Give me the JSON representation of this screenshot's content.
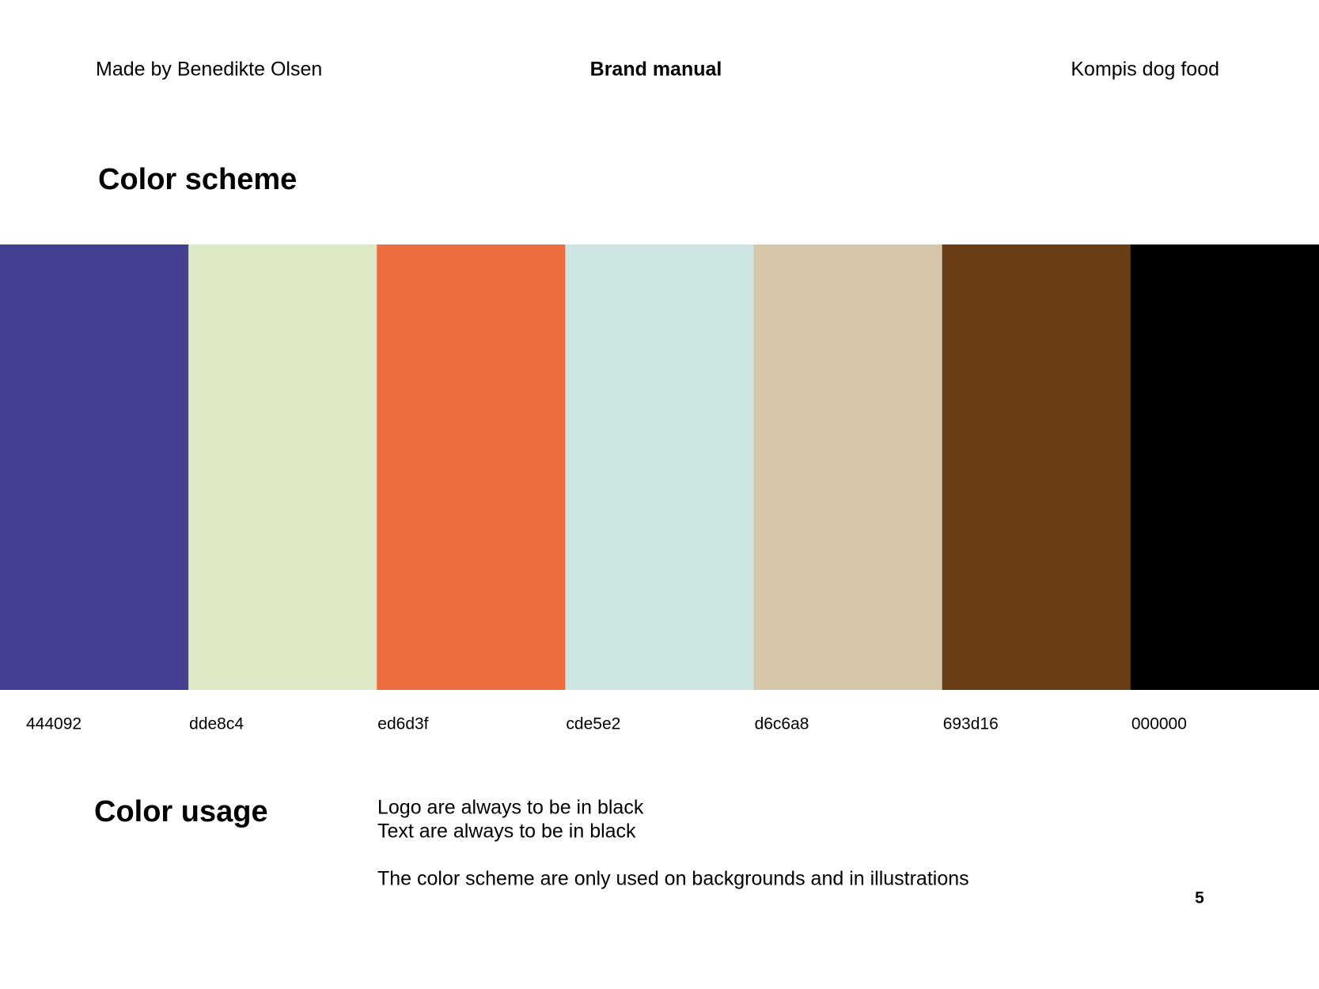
{
  "header": {
    "author": "Made by Benedikte Olsen",
    "title": "Brand manual",
    "brand": "Kompis dog food"
  },
  "color_scheme": {
    "title": "Color scheme",
    "swatches": [
      {
        "label": "444092",
        "color": "#444092"
      },
      {
        "label": "dde8c4",
        "color": "#dde8c4"
      },
      {
        "label": "ed6d3f",
        "color": "#ed6d3f"
      },
      {
        "label": "cde5e2",
        "color": "#cde5e2"
      },
      {
        "label": "d6c6a8",
        "color": "#d6c6a8"
      },
      {
        "label": "693d16",
        "color": "#693d16"
      },
      {
        "label": "000000",
        "color": "#000000"
      }
    ]
  },
  "color_usage": {
    "title": "Color usage",
    "lines": [
      "Logo are always to be in black",
      "Text are always to be in black",
      "The color scheme are only used on backgrounds and in illustrations"
    ]
  },
  "page_number": "5"
}
